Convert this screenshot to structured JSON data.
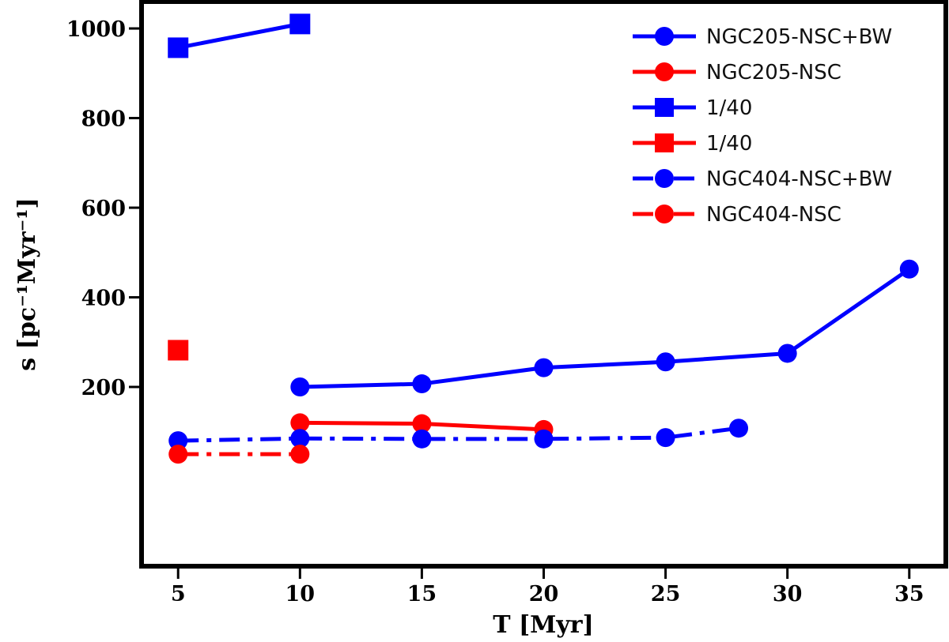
{
  "chart_data": {
    "type": "line",
    "title": "",
    "xlabel": "T [Myr]",
    "ylabel": "s [pc⁻¹Myr⁻¹]",
    "xlim": [
      3.5,
      36.5
    ],
    "ylim": [
      -200,
      1060
    ],
    "xticks": [
      5,
      10,
      15,
      20,
      25,
      30,
      35
    ],
    "yticks": [
      200,
      400,
      600,
      800,
      1000
    ],
    "grid": false,
    "legend_position": "top-right",
    "series": [
      {
        "name": "NGC205-NSC+BW",
        "color": "#0000ff",
        "marker": "circle",
        "line": "solid",
        "x": [
          10,
          15,
          20,
          25,
          30,
          35
        ],
        "y": [
          200,
          207,
          243,
          256,
          275,
          463
        ]
      },
      {
        "name": "NGC205-NSC",
        "color": "#ff0000",
        "marker": "circle",
        "line": "solid",
        "x": [
          10,
          15,
          20
        ],
        "y": [
          120,
          118,
          105
        ]
      },
      {
        "name": "1/40",
        "color": "#0000ff",
        "marker": "square",
        "line": "solid",
        "x": [
          5,
          10
        ],
        "y": [
          957,
          1010
        ]
      },
      {
        "name": "1/40",
        "color": "#ff0000",
        "marker": "square",
        "line": "solid",
        "x": [
          5
        ],
        "y": [
          282
        ]
      },
      {
        "name": "NGC404-NSC+BW",
        "color": "#0000ff",
        "marker": "circle",
        "line": "dashdot",
        "x": [
          5,
          10,
          15,
          20,
          25,
          28
        ],
        "y": [
          80,
          85,
          84,
          84,
          87,
          108
        ]
      },
      {
        "name": "NGC404-NSC",
        "color": "#ff0000",
        "marker": "circle",
        "line": "dashdot",
        "x": [
          5,
          10
        ],
        "y": [
          50,
          50
        ]
      }
    ]
  }
}
